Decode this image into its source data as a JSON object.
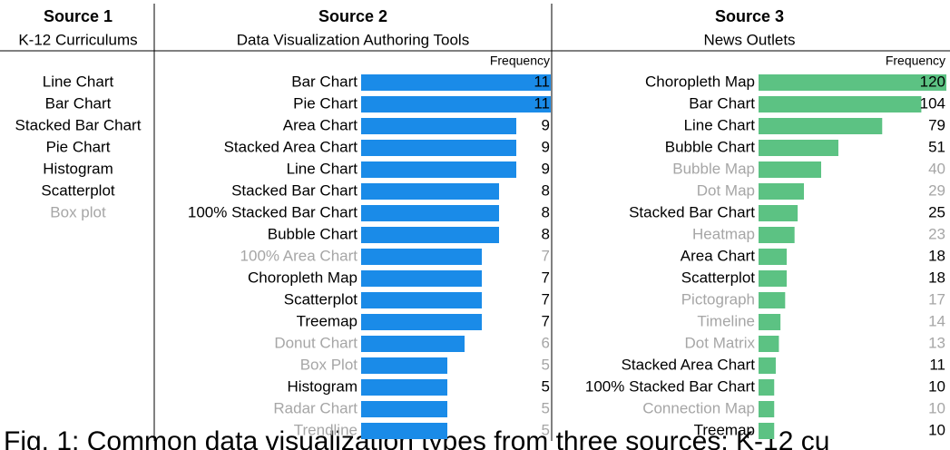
{
  "source1": {
    "title": "Source 1",
    "subtitle": "K-12 Curriculums",
    "items": [
      "Line Chart",
      "Bar Chart",
      "Stacked Bar Chart",
      "Pie Chart",
      "Histogram",
      "Scatterplot",
      "Box plot"
    ],
    "item_colors": [
      "#000000",
      "#000000",
      "#000000",
      "#000000",
      "#000000",
      "#000000",
      "#a6a6a6"
    ]
  },
  "chart_data": [
    {
      "type": "bar",
      "orientation": "horizontal",
      "title": "Source 2",
      "subtitle": "Data Visualization Authoring Tools",
      "x_label": "Frequency",
      "categories": [
        "Bar Chart",
        "Pie Chart",
        "Area Chart",
        "Stacked Area Chart",
        "Line Chart",
        "Stacked Bar Chart",
        "100% Stacked Bar Chart",
        "Bubble Chart",
        "100% Area Chart",
        "Choropleth Map",
        "Scatterplot",
        "Treemap",
        "Donut Chart",
        "Box Plot",
        "Histogram",
        "Radar Chart",
        "Trendline"
      ],
      "values": [
        11,
        11,
        9,
        9,
        9,
        8,
        8,
        8,
        7,
        7,
        7,
        7,
        6,
        5,
        5,
        5,
        5
      ],
      "category_colors": [
        "#000000",
        "#000000",
        "#000000",
        "#000000",
        "#000000",
        "#000000",
        "#000000",
        "#000000",
        "#a6a6a6",
        "#000000",
        "#000000",
        "#000000",
        "#a6a6a6",
        "#a6a6a6",
        "#000000",
        "#a6a6a6",
        "#a6a6a6"
      ],
      "color": "#1a8be8",
      "xlim": [
        0,
        11
      ]
    },
    {
      "type": "bar",
      "orientation": "horizontal",
      "title": "Source 3",
      "subtitle": "News Outlets",
      "x_label": "Frequency",
      "categories": [
        "Choropleth Map",
        "Bar Chart",
        "Line Chart",
        "Bubble Chart",
        "Bubble Map",
        "Dot Map",
        "Stacked Bar Chart",
        "Heatmap",
        "Area Chart",
        "Scatterplot",
        "Pictograph",
        "Timeline",
        "Dot Matrix",
        "Stacked Area Chart",
        "100% Stacked Bar Chart",
        "Connection Map",
        "Treemap"
      ],
      "values": [
        120,
        104,
        79,
        51,
        40,
        29,
        25,
        23,
        18,
        18,
        17,
        14,
        13,
        11,
        10,
        10,
        10
      ],
      "category_colors": [
        "#000000",
        "#000000",
        "#000000",
        "#000000",
        "#a6a6a6",
        "#a6a6a6",
        "#000000",
        "#a6a6a6",
        "#000000",
        "#000000",
        "#a6a6a6",
        "#a6a6a6",
        "#a6a6a6",
        "#000000",
        "#000000",
        "#a6a6a6",
        "#000000"
      ],
      "color": "#5cc283",
      "xlim": [
        0,
        120
      ]
    }
  ],
  "caption": "Fig. 1: Common data visualization types from three sources: K-12 cu"
}
